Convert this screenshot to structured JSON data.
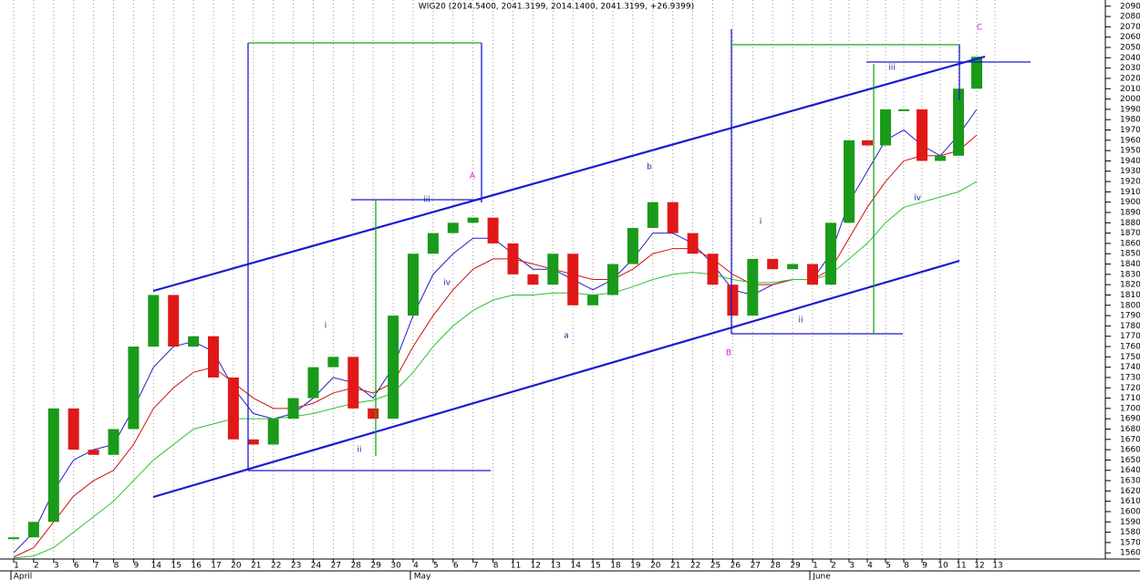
{
  "chart_data": {
    "type": "bar",
    "title": "WIG20 (2014.5400, 2041.3199, 2014.1400, 2041.3199, +26.9399)",
    "categories": [
      "1",
      "2",
      "3",
      "6",
      "7",
      "8",
      "9",
      "14",
      "15",
      "16",
      "17",
      "20",
      "21",
      "22",
      "23",
      "24",
      "27",
      "28",
      "29",
      "30",
      "4",
      "5",
      "6",
      "7",
      "8",
      "11",
      "12",
      "13",
      "14",
      "15",
      "18",
      "19",
      "20",
      "21",
      "22",
      "25",
      "26",
      "27",
      "28",
      "29",
      "1",
      "2",
      "3",
      "4",
      "5",
      "8",
      "9",
      "10",
      "11",
      "12",
      "13"
    ],
    "months": [
      "April",
      "May",
      "June"
    ],
    "values": [
      1575,
      1590,
      1700,
      1660,
      1655,
      1680,
      1760,
      1810,
      1760,
      1770,
      1730,
      1670,
      1665,
      1690,
      1710,
      1740,
      1750,
      1700,
      1690,
      1790,
      1850,
      1870,
      1880,
      1885,
      1860,
      1830,
      1820,
      1850,
      1800,
      1810,
      1840,
      1875,
      1900,
      1870,
      1850,
      1820,
      1790,
      1845,
      1835,
      1840,
      1820,
      1880,
      1960,
      1955,
      1990,
      1990,
      1940,
      1945,
      2010,
      2041,
      null
    ],
    "up_color": "#1a9a1a",
    "down_color": "#e01818",
    "series": [
      {
        "color": "#2020c8",
        "values": [
          1560,
          1580,
          1620,
          1650,
          1660,
          1665,
          1700,
          1740,
          1760,
          1765,
          1755,
          1720,
          1695,
          1690,
          1695,
          1710,
          1730,
          1725,
          1710,
          1740,
          1790,
          1830,
          1850,
          1865,
          1865,
          1850,
          1835,
          1835,
          1825,
          1815,
          1825,
          1845,
          1870,
          1870,
          1860,
          1840,
          1815,
          1810,
          1820,
          1825,
          1825,
          1850,
          1900,
          1930,
          1960,
          1970,
          1955,
          1945,
          1965,
          1990,
          null
        ]
      },
      {
        "color": "#d01010",
        "values": [
          1556,
          1565,
          1590,
          1615,
          1630,
          1640,
          1665,
          1700,
          1720,
          1735,
          1740,
          1725,
          1710,
          1700,
          1700,
          1705,
          1715,
          1720,
          1715,
          1725,
          1760,
          1790,
          1815,
          1835,
          1845,
          1845,
          1840,
          1835,
          1830,
          1825,
          1825,
          1835,
          1850,
          1855,
          1855,
          1845,
          1830,
          1820,
          1820,
          1825,
          1825,
          1835,
          1865,
          1895,
          1920,
          1940,
          1945,
          1945,
          1950,
          1965,
          null
        ]
      },
      {
        "color": "#30c030",
        "values": [
          1555,
          1557,
          1565,
          1580,
          1595,
          1610,
          1630,
          1650,
          1665,
          1680,
          1685,
          1690,
          1690,
          1690,
          1692,
          1695,
          1700,
          1705,
          1708,
          1715,
          1735,
          1760,
          1780,
          1795,
          1805,
          1810,
          1810,
          1812,
          1812,
          1810,
          1812,
          1818,
          1825,
          1830,
          1832,
          1830,
          1825,
          1822,
          1822,
          1825,
          1825,
          1830,
          1845,
          1860,
          1880,
          1895,
          1900,
          1905,
          1910,
          1920,
          null
        ]
      }
    ],
    "annotations": [
      "i",
      "ii",
      "iii",
      "iv",
      "A",
      "a",
      "b",
      "B",
      "i",
      "ii",
      "iii",
      "iv",
      "C"
    ],
    "ylim": [
      1554,
      2096
    ],
    "yticks": [
      1560,
      1570,
      1580,
      1590,
      1600,
      1610,
      1620,
      1630,
      1640,
      1650,
      1660,
      1670,
      1680,
      1690,
      1700,
      1710,
      1720,
      1730,
      1740,
      1750,
      1760,
      1770,
      1780,
      1790,
      1800,
      1810,
      1820,
      1830,
      1840,
      1850,
      1860,
      1870,
      1880,
      1890,
      1900,
      1910,
      1920,
      1930,
      1940,
      1950,
      1960,
      1970,
      1980,
      1990,
      2000,
      2010,
      2020,
      2030,
      2040,
      2050,
      2060,
      2070,
      2080,
      2090
    ]
  }
}
